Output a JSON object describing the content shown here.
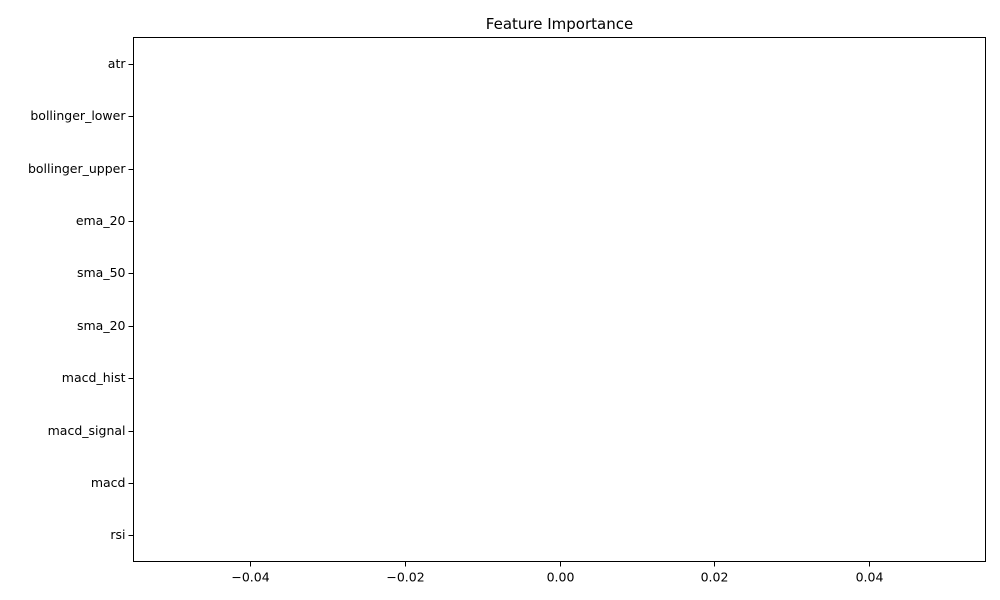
{
  "chart_data": {
    "type": "bar",
    "orientation": "horizontal",
    "title": "Feature Importance",
    "xlabel": "",
    "ylabel": "",
    "categories": [
      "rsi",
      "macd",
      "macd_signal",
      "macd_hist",
      "sma_20",
      "sma_50",
      "ema_20",
      "bollinger_upper",
      "bollinger_lower",
      "atr"
    ],
    "values": [
      0,
      0,
      0,
      0,
      0,
      0,
      0,
      0,
      0,
      0
    ],
    "xlim": [
      -0.055,
      0.055
    ],
    "xticks": [
      -0.04,
      -0.02,
      0.0,
      0.02,
      0.04
    ],
    "xtick_labels": [
      "−0.04",
      "−0.02",
      "0.00",
      "0.02",
      "0.04"
    ],
    "grid": false,
    "bar_color": "#1f77b4"
  }
}
